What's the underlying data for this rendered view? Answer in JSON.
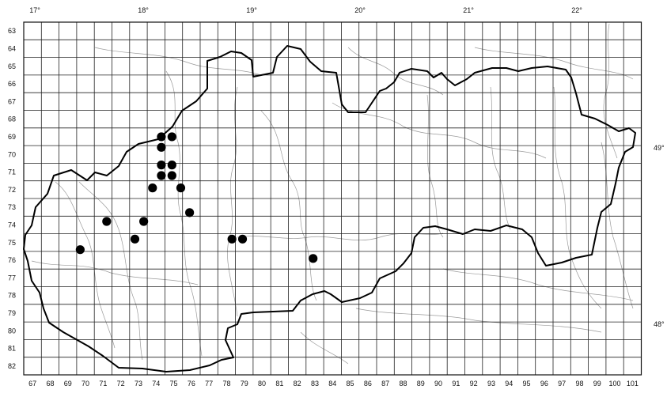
{
  "map": {
    "columns": [
      "67",
      "68",
      "69",
      "70",
      "71",
      "72",
      "73",
      "74",
      "75",
      "76",
      "77",
      "78",
      "79",
      "80",
      "81",
      "82",
      "83",
      "84",
      "85",
      "86",
      "87",
      "88",
      "89",
      "90",
      "91",
      "92",
      "93",
      "94",
      "95",
      "96",
      "97",
      "98",
      "99",
      "100",
      "101"
    ],
    "rows": [
      "63",
      "64",
      "65",
      "66",
      "67",
      "68",
      "69",
      "70",
      "71",
      "72",
      "73",
      "74",
      "75",
      "76",
      "77",
      "78",
      "79",
      "80",
      "81",
      "82"
    ],
    "longitudes": [
      {
        "label": "17°",
        "lon": 17
      },
      {
        "label": "18°",
        "lon": 18
      },
      {
        "label": "19°",
        "lon": 19
      },
      {
        "label": "20°",
        "lon": 20
      },
      {
        "label": "21°",
        "lon": 21
      },
      {
        "label": "22°",
        "lon": 22
      }
    ],
    "latitudes": [
      {
        "label": "49°",
        "lat": 49
      },
      {
        "label": "48°",
        "lat": 48
      }
    ],
    "occurrences": [
      {
        "col": 74.3,
        "row": 69.0
      },
      {
        "col": 74.3,
        "row": 69.6
      },
      {
        "col": 74.9,
        "row": 69.0
      },
      {
        "col": 74.3,
        "row": 70.6
      },
      {
        "col": 74.3,
        "row": 71.2
      },
      {
        "col": 74.9,
        "row": 70.6
      },
      {
        "col": 74.9,
        "row": 71.2
      },
      {
        "col": 73.8,
        "row": 71.9
      },
      {
        "col": 75.4,
        "row": 71.9
      },
      {
        "col": 75.9,
        "row": 73.3
      },
      {
        "col": 71.2,
        "row": 73.8
      },
      {
        "col": 73.3,
        "row": 73.8
      },
      {
        "col": 72.8,
        "row": 74.8
      },
      {
        "col": 69.7,
        "row": 75.4
      },
      {
        "col": 78.3,
        "row": 74.8
      },
      {
        "col": 78.9,
        "row": 74.8
      },
      {
        "col": 82.9,
        "row": 75.9
      }
    ]
  }
}
